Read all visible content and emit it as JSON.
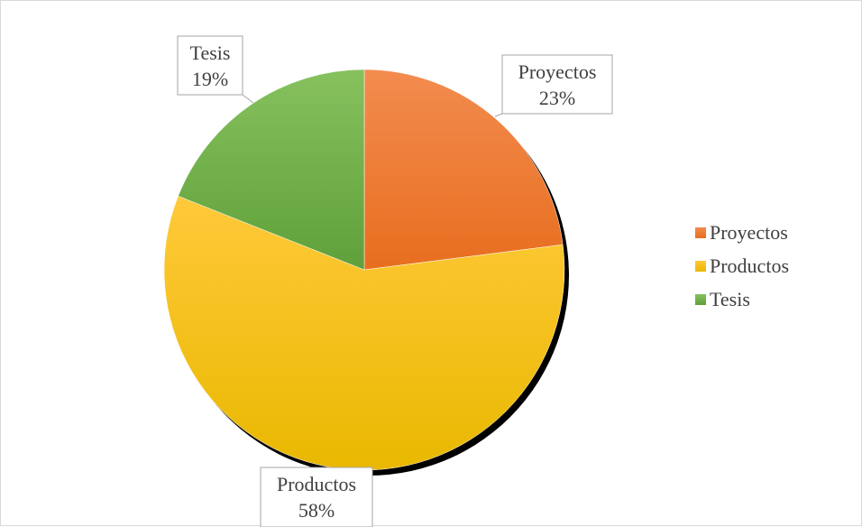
{
  "chart_data": {
    "type": "pie",
    "title": "",
    "series": [
      {
        "name": "",
        "categories": [
          "Proyectos",
          "Productos",
          "Tesis"
        ],
        "values": [
          23,
          58,
          19
        ],
        "labels": [
          "23%",
          "58%",
          "19%"
        ]
      }
    ],
    "colors": {
      "Proyectos": [
        "#f28c4f",
        "#e86e1f"
      ],
      "Productos": [
        "#ffc93a",
        "#e9b800"
      ],
      "Tesis": [
        "#86c15e",
        "#5fa03a"
      ]
    },
    "start_angle_deg": 0,
    "direction": "clockwise",
    "data_labels": "category-and-percent, boxed callouts with leader lines",
    "legend": {
      "position": "right",
      "entries": [
        "Proyectos",
        "Productos",
        "Tesis"
      ]
    }
  }
}
